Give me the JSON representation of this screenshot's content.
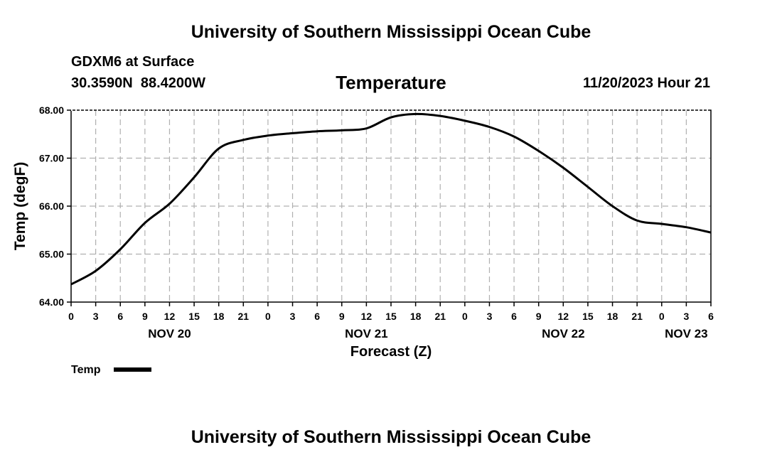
{
  "header": {
    "org_title": "University of Southern Mississippi Ocean Cube",
    "station": "GDXM6 at Surface",
    "coords": "30.3590N  88.4200W",
    "date": "11/20/2023 Hour 21"
  },
  "footer": {
    "org_title": "University of Southern Mississippi Ocean Cube"
  },
  "chart_data": {
    "type": "line",
    "title": "Temperature",
    "xlabel": "Forecast (Z)",
    "ylabel": "Temp (degF)",
    "ylim": [
      64.0,
      68.0
    ],
    "y_ticks": [
      "64.00",
      "65.00",
      "66.00",
      "67.00",
      "68.00"
    ],
    "x_hours_range": [
      0,
      78
    ],
    "x_tick_labels": [
      "0",
      "3",
      "6",
      "9",
      "12",
      "15",
      "18",
      "21",
      "0",
      "3",
      "6",
      "9",
      "12",
      "15",
      "18",
      "21",
      "0",
      "3",
      "6",
      "9",
      "12",
      "15",
      "18",
      "21",
      "0",
      "3",
      "6"
    ],
    "day_labels": [
      {
        "label": "NOV 20",
        "hour": 12
      },
      {
        "label": "NOV 21",
        "hour": 36
      },
      {
        "label": "NOV 22",
        "hour": 60
      },
      {
        "label": "NOV 23",
        "hour": 75
      }
    ],
    "grid": true,
    "legend": "bottom-left",
    "series": [
      {
        "name": "Temp",
        "color": "#000000",
        "x_hours": [
          0,
          3,
          6,
          9,
          12,
          15,
          18,
          21,
          24,
          27,
          30,
          33,
          36,
          39,
          42,
          45,
          48,
          51,
          54,
          57,
          60,
          63,
          66,
          69,
          72,
          75,
          78
        ],
        "values": [
          64.37,
          64.65,
          65.1,
          65.65,
          66.05,
          66.6,
          67.2,
          67.38,
          67.47,
          67.52,
          67.56,
          67.58,
          67.62,
          67.85,
          67.92,
          67.88,
          67.78,
          67.65,
          67.45,
          67.15,
          66.8,
          66.4,
          66.0,
          65.7,
          65.63,
          65.56,
          65.45
        ]
      }
    ]
  }
}
